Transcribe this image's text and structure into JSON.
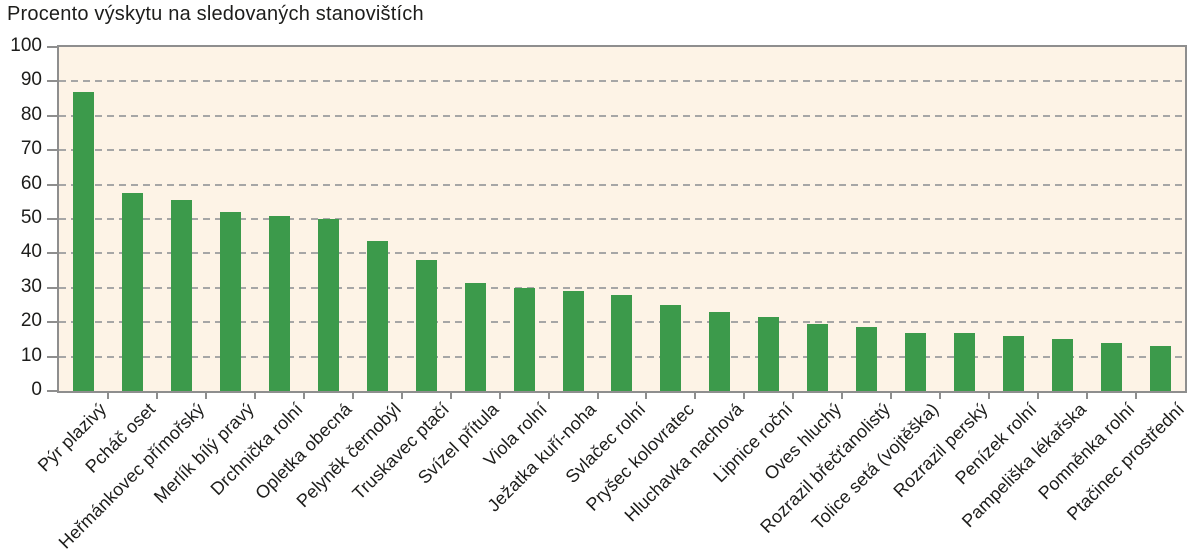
{
  "chart_data": {
    "type": "bar",
    "title": "Procento výskytu na sledovaných stanovištích",
    "categories": [
      "Pýr plazivý",
      "Pcháč oset",
      "Heřmánkovec přímořský",
      "Merlík bílý pravý",
      "Drchnička rolní",
      "Opletka obecná",
      "Pelyněk černobýl",
      "Truskavec ptačí",
      "Svízel přítula",
      "Viola rolní",
      "Ježatka kuří-noha",
      "Svlačec rolní",
      "Pryšec kolovratec",
      "Hluchavka nachová",
      "Lipnice roční",
      "Oves hluchý",
      "Rozrazil břečťanolistý",
      "Tolice setá (vojtěška)",
      "Rozrazil perský",
      "Penízek rolní",
      "Pampeliška lékařska",
      "Pomněnka rolní",
      "Ptačinec prostřední"
    ],
    "values": [
      87,
      57.5,
      55.5,
      52,
      51,
      50,
      43.5,
      38,
      31.5,
      30,
      29,
      28,
      25,
      23,
      21.5,
      19.5,
      18.5,
      17,
      17,
      16,
      15,
      14,
      13
    ],
    "xlabel": "",
    "ylabel": "",
    "ylim": [
      0,
      100
    ],
    "yticks": [
      0,
      10,
      20,
      30,
      40,
      50,
      60,
      70,
      80,
      90,
      100
    ],
    "grid": "horizontal-dashed",
    "legend": "none",
    "colors": {
      "bar": "#3c9a4b",
      "plot_background": "#fdf3e6",
      "gridline": "#a6a6a6",
      "axis_border": "#8e8e8e",
      "text": "#1d1d1b",
      "page_background": "#ffffff"
    }
  }
}
